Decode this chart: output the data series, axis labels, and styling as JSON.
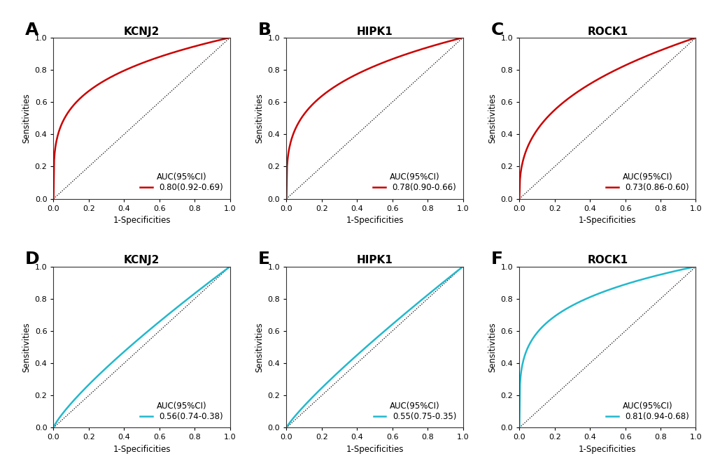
{
  "panels": [
    {
      "label": "A",
      "title": "KCNJ2",
      "auc_text": "AUC(95%CI)",
      "auc_value": "0.80(0.92-0.69)",
      "auc": 0.8,
      "color": "#cc0000",
      "row": 0,
      "col": 0,
      "beta": 0.25
    },
    {
      "label": "B",
      "title": "HIPK1",
      "auc_text": "AUC(95%CI)",
      "auc_value": "0.78(0.90-0.66)",
      "auc": 0.78,
      "color": "#cc0000",
      "row": 0,
      "col": 1,
      "beta": 0.28
    },
    {
      "label": "C",
      "title": "ROCK1",
      "auc_text": "AUC(95%CI)",
      "auc_value": "0.73(0.86-0.60)",
      "auc": 0.73,
      "color": "#cc0000",
      "row": 0,
      "col": 2,
      "beta": 0.37
    },
    {
      "label": "D",
      "title": "KCNJ2",
      "auc_text": "AUC(95%CI)",
      "auc_value": "0.56(0.74-0.38)",
      "auc": 0.56,
      "color": "#22b8cc",
      "row": 1,
      "col": 0,
      "beta": 0.82
    },
    {
      "label": "E",
      "title": "HIPK1",
      "auc_text": "AUC(95%CI)",
      "auc_value": "0.55(0.75-0.35)",
      "auc": 0.55,
      "color": "#22b8cc",
      "row": 1,
      "col": 1,
      "beta": 0.87
    },
    {
      "label": "F",
      "title": "ROCK1",
      "auc_text": "AUC(95%CI)",
      "auc_value": "0.81(0.94-0.68)",
      "auc": 0.81,
      "color": "#22b8cc",
      "row": 1,
      "col": 2,
      "beta": 0.23
    }
  ],
  "xlabel": "1-Specificities",
  "ylabel": "Sensitivities",
  "tick_values": [
    0.0,
    0.2,
    0.4,
    0.6,
    0.8,
    1.0
  ],
  "background_color": "#ffffff",
  "panel_label_fontsize": 18,
  "title_fontsize": 11,
  "axis_fontsize": 8.5,
  "legend_fontsize": 8.5,
  "tick_fontsize": 8
}
